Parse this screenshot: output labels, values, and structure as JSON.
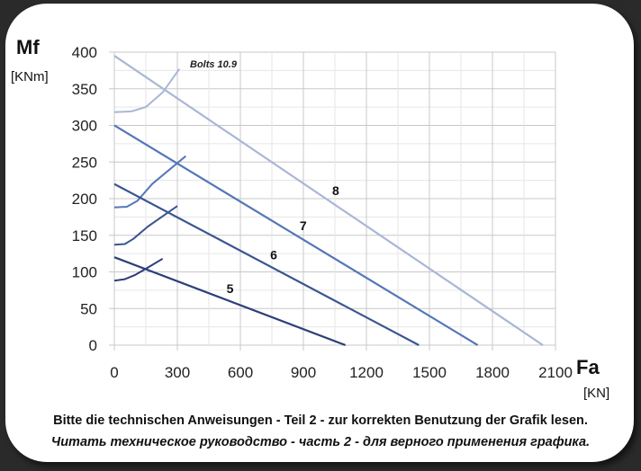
{
  "chart_data": {
    "type": "line",
    "ylabel": "Mf",
    "yunit": "[KNm]",
    "xlabel": "Fa",
    "xunit": "[KN]",
    "xlim": [
      0,
      2100
    ],
    "ylim": [
      0,
      400
    ],
    "x_ticks": [
      0,
      300,
      600,
      900,
      1200,
      1500,
      1800,
      2100
    ],
    "y_ticks": [
      0,
      50,
      100,
      150,
      200,
      250,
      300,
      350,
      400
    ],
    "grid": true,
    "annotation": "Bolts 10.9",
    "colors": {
      "series_5": "#2e3f78",
      "series_6": "#3a5690",
      "series_7": "#5577b8",
      "series_8": "#aab6d6",
      "grid": "#c8c8c8"
    },
    "series": [
      {
        "name": "5",
        "x": [
          0,
          1100
        ],
        "y": [
          120,
          0
        ]
      },
      {
        "name": "6",
        "x": [
          0,
          1450
        ],
        "y": [
          220,
          0
        ]
      },
      {
        "name": "7",
        "x": [
          0,
          1730
        ],
        "y": [
          300,
          0
        ]
      },
      {
        "name": "8",
        "x": [
          0,
          2040
        ],
        "y": [
          395,
          0
        ]
      }
    ],
    "bolt_curves": [
      {
        "series": "5",
        "x": [
          0,
          50,
          100,
          160,
          230
        ],
        "y": [
          88,
          90,
          96,
          106,
          118
        ]
      },
      {
        "series": "6",
        "x": [
          0,
          50,
          90,
          160,
          300
        ],
        "y": [
          137,
          138,
          145,
          162,
          190
        ]
      },
      {
        "series": "7",
        "x": [
          0,
          60,
          110,
          180,
          340
        ],
        "y": [
          188,
          189,
          197,
          220,
          258
        ]
      },
      {
        "series": "8",
        "x": [
          0,
          80,
          150,
          230,
          310
        ],
        "y": [
          318,
          319,
          325,
          345,
          377
        ]
      }
    ]
  },
  "caption_de": "Bitte die technischen Anweisungen  - Teil 2 - zur korrekten Benutzung der Grafik lesen.",
  "caption_ru": "Читать техническое руководство - часть 2 - для верного применения графика."
}
